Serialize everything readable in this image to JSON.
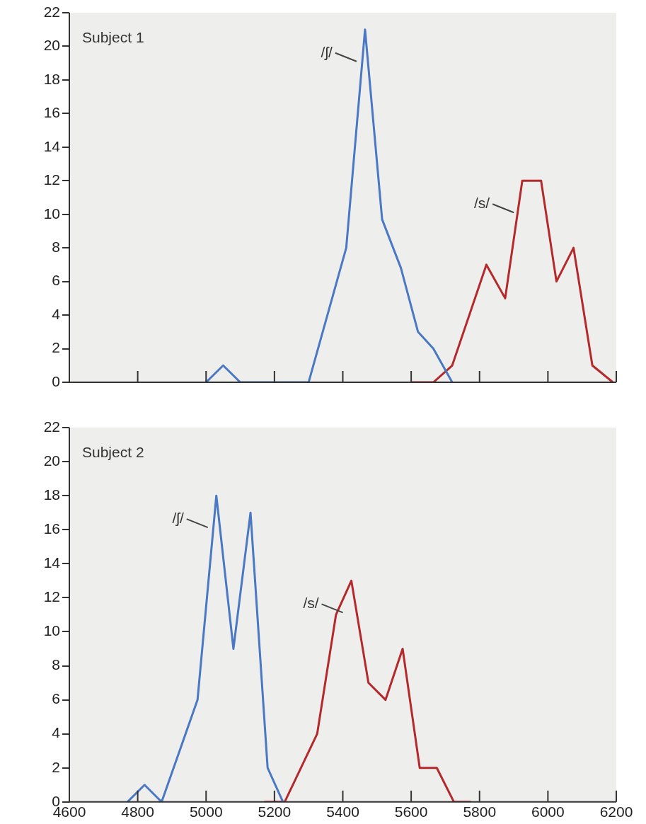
{
  "chart_data": [
    {
      "type": "line",
      "title": "Subject 1",
      "xlim": [
        4600,
        6200
      ],
      "xticks": [
        4600,
        4800,
        5000,
        5200,
        5400,
        5600,
        5800,
        6000,
        6200
      ],
      "ylim": [
        0,
        22
      ],
      "yticks": [
        0,
        2,
        4,
        6,
        8,
        10,
        12,
        14,
        16,
        18,
        20,
        22
      ],
      "tick_labels": "y",
      "series": [
        {
          "name": "/ʃ/",
          "color": "#4a78c4",
          "x": [
            5000,
            5050,
            5100,
            5300,
            5410,
            5465,
            5515,
            5570,
            5620,
            5665,
            5720
          ],
          "values": [
            0,
            1,
            0,
            0,
            8,
            21,
            9.7,
            6.8,
            3,
            2,
            0
          ]
        },
        {
          "name": "/s/",
          "color": "#b5282c",
          "x": [
            5600,
            5665,
            5720,
            5820,
            5875,
            5925,
            5980,
            6025,
            6075,
            6130,
            6190
          ],
          "values": [
            0,
            0,
            1,
            7,
            5,
            12,
            12,
            6,
            8,
            1,
            0
          ]
        }
      ]
    },
    {
      "type": "line",
      "title": "Subject 2",
      "xlim": [
        4600,
        6200
      ],
      "xticks": [
        4600,
        4800,
        5000,
        5200,
        5400,
        5600,
        5800,
        6000,
        6200
      ],
      "ylim": [
        0,
        22
      ],
      "yticks": [
        0,
        2,
        4,
        6,
        8,
        10,
        12,
        14,
        16,
        18,
        20,
        22
      ],
      "series": [
        {
          "name": "/ʃ/",
          "color": "#4a78c4",
          "x": [
            4770,
            4820,
            4870,
            4975,
            5030,
            5080,
            5130,
            5180,
            5225
          ],
          "values": [
            0,
            1,
            0,
            6,
            18,
            9,
            17,
            2,
            0
          ]
        },
        {
          "name": "/s/",
          "color": "#b5282c",
          "x": [
            5170,
            5230,
            5325,
            5380,
            5425,
            5475,
            5525,
            5575,
            5625,
            5675,
            5725,
            5775
          ],
          "values": [
            0,
            0,
            4,
            11,
            13,
            7,
            6,
            9,
            2,
            2,
            0,
            0
          ]
        }
      ]
    }
  ]
}
